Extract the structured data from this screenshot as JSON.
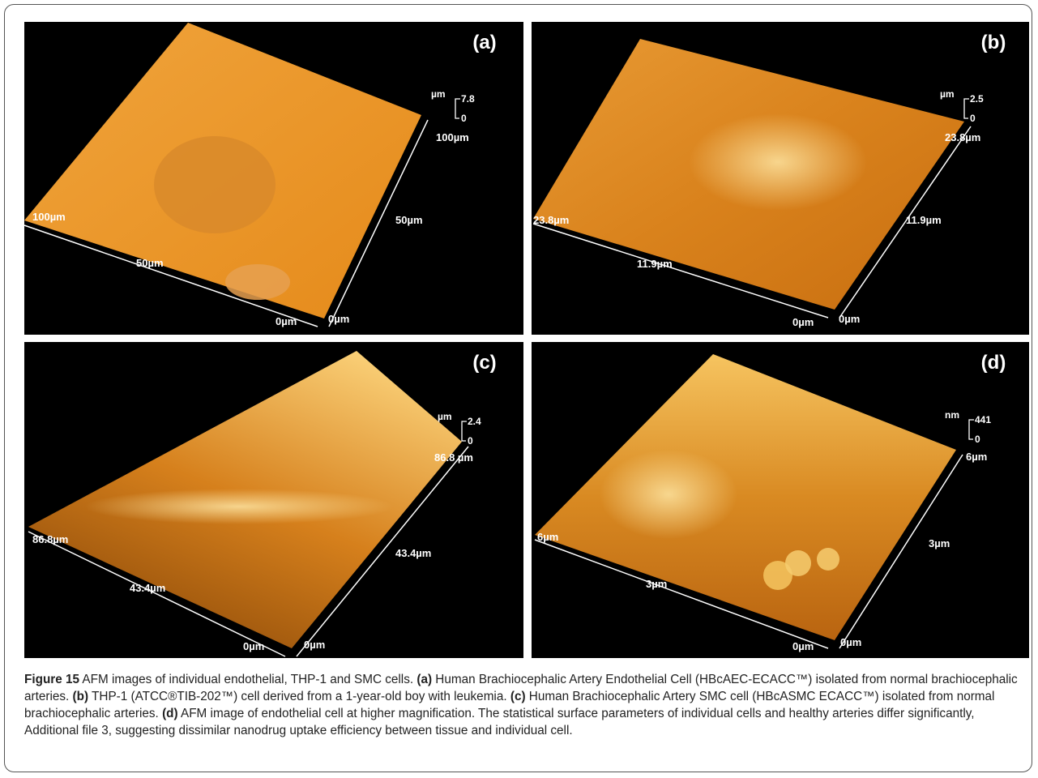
{
  "panels": [
    {
      "letter": "(a)",
      "scale": {
        "unit": "µm",
        "max": "7.8",
        "min": "0"
      },
      "axis_labels": [
        "100µm",
        "50µm",
        "0µm",
        "0µm",
        "50µm",
        "100µm"
      ]
    },
    {
      "letter": "(b)",
      "scale": {
        "unit": "µm",
        "max": "2.5",
        "min": "0"
      },
      "axis_labels": [
        "23.8µm",
        "11.9µm",
        "0µm",
        "0µm",
        "11.9µm",
        "23.8µm"
      ]
    },
    {
      "letter": "(c)",
      "scale": {
        "unit": "µm",
        "max": "2.4",
        "min": "0"
      },
      "axis_labels": [
        "86.8µm",
        "43.4µm",
        "0µm",
        "0µm",
        "43.4µm",
        "86.8 µm"
      ]
    },
    {
      "letter": "(d)",
      "scale": {
        "unit": "nm",
        "max": "441",
        "min": "0"
      },
      "axis_labels": [
        "6µm",
        "3µm",
        "0µm",
        "0µm",
        "3µm",
        "6µm"
      ]
    }
  ],
  "caption": {
    "label": "Figure 15",
    "text": "AFM images of individual endothelial, THP-1 and SMC cells.",
    "items": [
      {
        "label": "(a)",
        "text": "Human Brachiocephalic Artery Endothelial Cell (HBcAEC-ECACC™) isolated from normal brachiocephalic arteries."
      },
      {
        "label": "(b)",
        "text": "THP-1 (ATCC®TIB-202™) cell derived from a 1-year-old boy with leukemia."
      },
      {
        "label": "(c)",
        "text": "Human Brachiocephalic Artery SMC cell (HBcASMC ECACC™) isolated from normal brachiocephalic arteries."
      },
      {
        "label": "(d)",
        "text": "AFM image of endothelial cell at higher magnification. The statistical surface parameters of individual cells and healthy arteries differ significantly, Additional file 3, suggesting dissimilar nanodrug uptake efficiency between tissue and individual cell."
      }
    ]
  }
}
